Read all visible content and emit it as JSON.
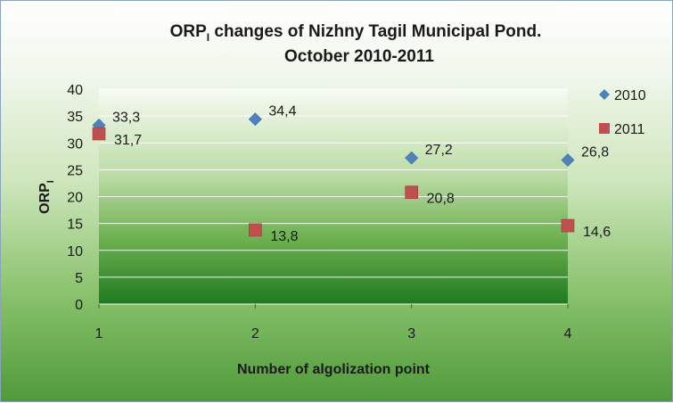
{
  "chart_data": {
    "type": "scatter",
    "title_line1": "ORP",
    "title_sub": "I",
    "title_line1_rest": " changes of Nizhny Tagil Municipal Pond.",
    "title_line2": "October 2010-2011",
    "xlabel": "Number of algolization  point",
    "ylabel": "ORP",
    "ylabel_sub": "I",
    "x_ticks": [
      "1",
      "2",
      "3",
      "4"
    ],
    "y_ticks": [
      "0",
      "5",
      "10",
      "15",
      "20",
      "25",
      "30",
      "35",
      "40"
    ],
    "xlim": [
      1,
      4
    ],
    "ylim": [
      0,
      40
    ],
    "grid": "horizontal",
    "legend_position": "right",
    "series": [
      {
        "name": "2010",
        "marker": "diamond",
        "color": "#4f81bd",
        "x": [
          1,
          2,
          3,
          4
        ],
        "y": [
          33.3,
          34.4,
          27.2,
          26.8
        ],
        "labels": [
          "33,3",
          "34,4",
          "27,2",
          "26,8"
        ]
      },
      {
        "name": "2011",
        "marker": "square",
        "color": "#c0504d",
        "x": [
          1,
          2,
          3,
          4
        ],
        "y": [
          31.7,
          13.8,
          20.8,
          14.6
        ],
        "labels": [
          "31,7",
          "13,8",
          "20,8",
          "14,6"
        ]
      }
    ]
  }
}
